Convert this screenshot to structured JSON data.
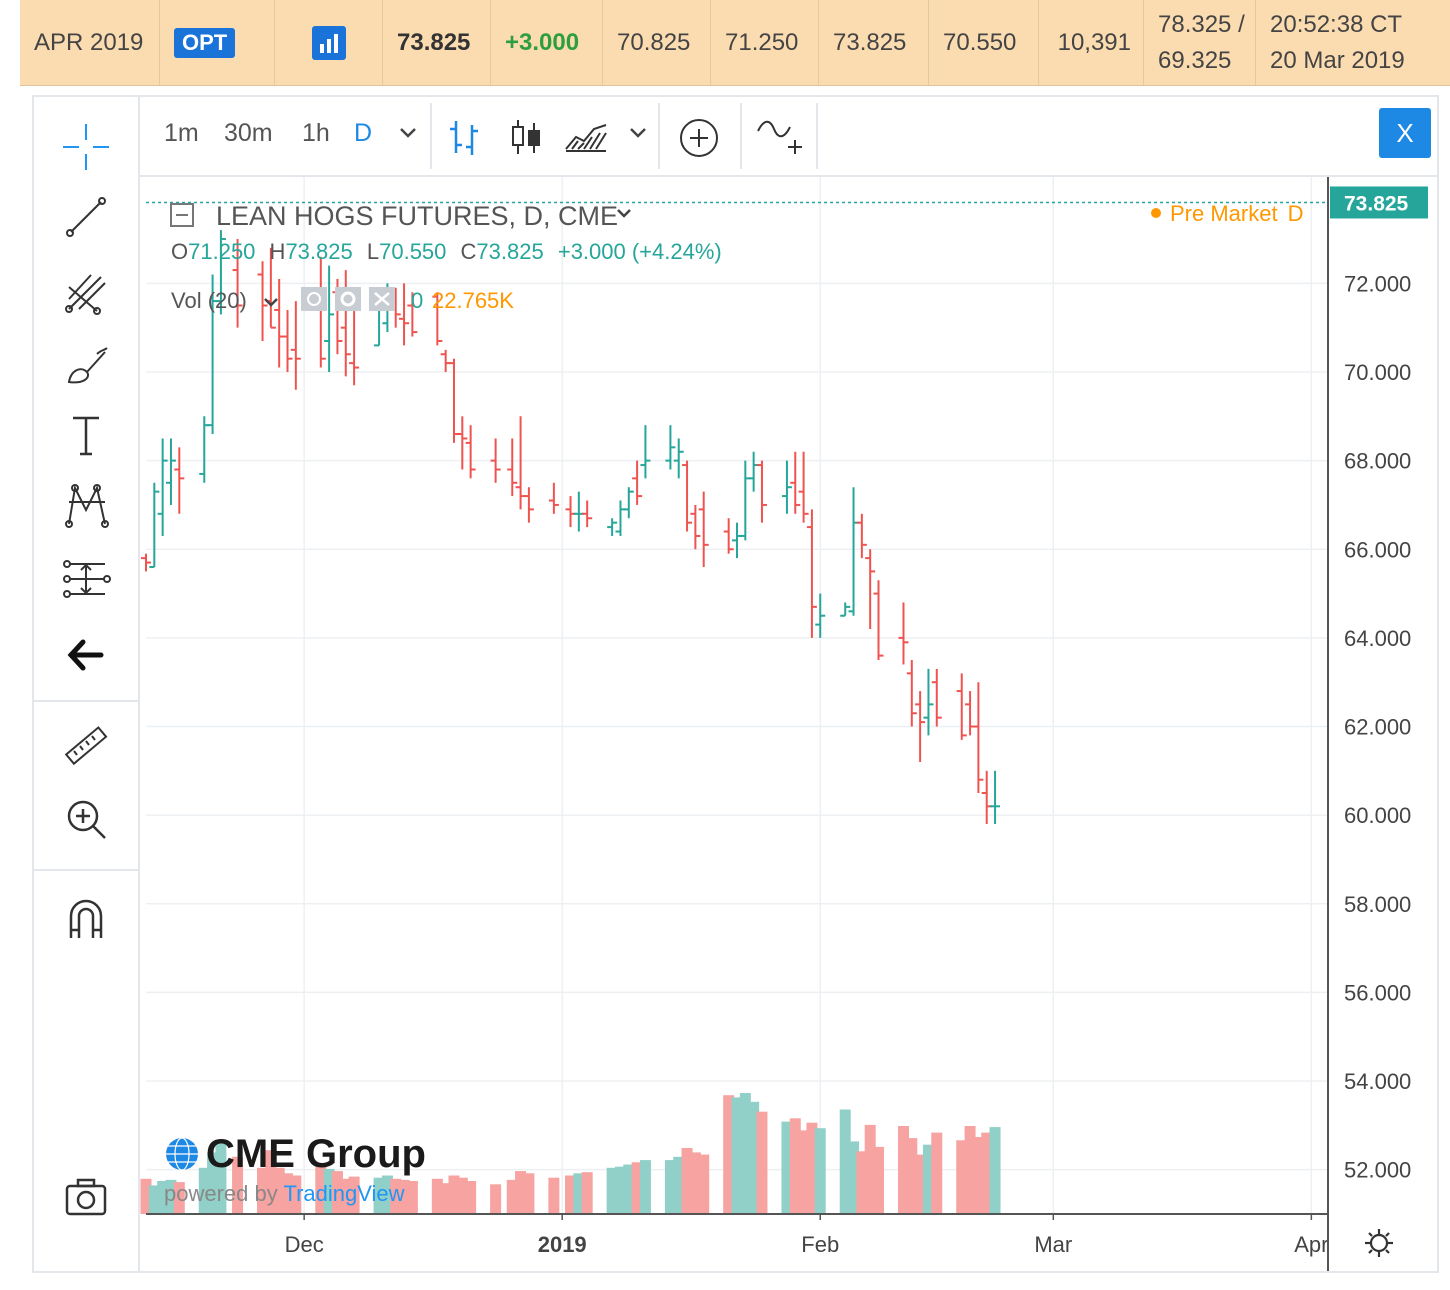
{
  "quote_bar": {
    "contract": "APR 2019",
    "opt_label": "OPT",
    "last": "73.825",
    "change": "+3.000",
    "prior_settle": "70.825",
    "open": "71.250",
    "high": "73.825",
    "low": "70.550",
    "volume": "10,391",
    "limit_high": "78.325 /",
    "limit_low": "69.325",
    "time": "20:52:38 CT",
    "date": "20 Mar 2019"
  },
  "toolbar": {
    "intervals": [
      "1m",
      "30m",
      "1h",
      "D"
    ],
    "close_label": "X"
  },
  "chart_data": {
    "type": "ohlc",
    "title": "LEAN HOGS FUTURES, D, CME",
    "session_label": "Pre Market",
    "session_interval": "D",
    "ohlc_readout": {
      "o_label": "O",
      "o": "71.250",
      "h_label": "H",
      "h": "73.825",
      "l_label": "L",
      "l": "70.550",
      "c_label": "C",
      "c": "73.825",
      "change": "+3.000 (+4.24%)"
    },
    "volume_label": "Vol (20)",
    "volume_value_label": "0",
    "volume_ma": "22.765K",
    "last_price_label": "73.825",
    "last_price": 73.825,
    "ylim": [
      51,
      74.4
    ],
    "y_ticks": [
      52,
      54,
      56,
      58,
      60,
      62,
      64,
      66,
      68,
      70,
      72
    ],
    "y_tick_labels": [
      "52.000",
      "54.000",
      "56.000",
      "58.000",
      "60.000",
      "62.000",
      "64.000",
      "66.000",
      "68.000",
      "70.000",
      "72.000"
    ],
    "x_range": [
      "2018-11-12",
      "2019-04-03"
    ],
    "x_ticks": [
      {
        "date": "2018-12-01",
        "label": "Dec",
        "bold": false
      },
      {
        "date": "2019-01-01",
        "label": "2019",
        "bold": true
      },
      {
        "date": "2019-02-01",
        "label": "Feb",
        "bold": false
      },
      {
        "date": "2019-03-01",
        "label": "Mar",
        "bold": false
      },
      {
        "date": "2019-04-01",
        "label": "Apr",
        "bold": false
      }
    ],
    "volume_max": 20000,
    "bars": [
      {
        "date": "2018-11-12",
        "o": 65.8,
        "h": 65.9,
        "l": 65.5,
        "c": 65.7,
        "v": 3200
      },
      {
        "date": "2018-11-13",
        "o": 65.6,
        "h": 67.5,
        "l": 65.6,
        "c": 67.3,
        "v": 2600
      },
      {
        "date": "2018-11-14",
        "o": 66.8,
        "h": 68.5,
        "l": 66.3,
        "c": 68.0,
        "v": 3000
      },
      {
        "date": "2018-11-15",
        "o": 67.5,
        "h": 68.5,
        "l": 67.0,
        "c": 68.0,
        "v": 3100
      },
      {
        "date": "2018-11-16",
        "o": 67.8,
        "h": 68.3,
        "l": 66.8,
        "c": 67.6,
        "v": 2900
      },
      {
        "date": "2018-11-19",
        "o": 67.7,
        "h": 69.0,
        "l": 67.5,
        "c": 68.8,
        "v": 4200
      },
      {
        "date": "2018-11-20",
        "o": 68.8,
        "h": 72.2,
        "l": 68.6,
        "c": 71.6,
        "v": 5600
      },
      {
        "date": "2018-11-21",
        "o": 71.6,
        "h": 73.2,
        "l": 71.3,
        "c": 73.0,
        "v": 6400
      },
      {
        "date": "2018-11-23",
        "o": 72.3,
        "h": 73.0,
        "l": 71.0,
        "c": 71.5,
        "v": 5200
      },
      {
        "date": "2018-11-26",
        "o": 72.2,
        "h": 72.5,
        "l": 70.7,
        "c": 71.5,
        "v": 4200
      },
      {
        "date": "2018-11-27",
        "o": 71.6,
        "h": 72.8,
        "l": 71.0,
        "c": 71.0,
        "v": 5800
      },
      {
        "date": "2018-11-28",
        "o": 71.4,
        "h": 72.1,
        "l": 70.1,
        "c": 70.8,
        "v": 4200
      },
      {
        "date": "2018-11-29",
        "o": 70.8,
        "h": 71.4,
        "l": 70.0,
        "c": 70.3,
        "v": 3700
      },
      {
        "date": "2018-11-30",
        "o": 70.5,
        "h": 71.6,
        "l": 69.6,
        "c": 70.3,
        "v": 3500
      },
      {
        "date": "2018-12-03",
        "o": 71.8,
        "h": 72.6,
        "l": 70.1,
        "c": 70.3,
        "v": 4500
      },
      {
        "date": "2018-12-04",
        "o": 70.7,
        "h": 72.4,
        "l": 70.0,
        "c": 71.3,
        "v": 4100
      },
      {
        "date": "2018-12-05",
        "o": 71.8,
        "h": 72.1,
        "l": 70.4,
        "c": 70.7,
        "v": 3900
      },
      {
        "date": "2018-12-06",
        "o": 71.0,
        "h": 72.3,
        "l": 69.9,
        "c": 70.4,
        "v": 3200
      },
      {
        "date": "2018-12-07",
        "o": 70.2,
        "h": 71.7,
        "l": 69.7,
        "c": 70.1,
        "v": 3400
      },
      {
        "date": "2018-12-10",
        "o": 70.6,
        "h": 71.9,
        "l": 70.6,
        "c": 71.6,
        "v": 3300
      },
      {
        "date": "2018-12-11",
        "o": 71.1,
        "h": 72.0,
        "l": 70.9,
        "c": 71.5,
        "v": 3500
      },
      {
        "date": "2018-12-12",
        "o": 71.6,
        "h": 71.9,
        "l": 71.0,
        "c": 71.3,
        "v": 3200
      },
      {
        "date": "2018-12-13",
        "o": 71.2,
        "h": 72.0,
        "l": 70.6,
        "c": 71.1,
        "v": 3100
      },
      {
        "date": "2018-12-14",
        "o": 71.5,
        "h": 71.8,
        "l": 70.8,
        "c": 70.9,
        "v": 3000
      },
      {
        "date": "2018-12-17",
        "o": 71.7,
        "h": 71.8,
        "l": 70.6,
        "c": 70.7,
        "v": 3200
      },
      {
        "date": "2018-12-18",
        "o": 70.4,
        "h": 70.5,
        "l": 70.0,
        "c": 70.2,
        "v": 2800
      },
      {
        "date": "2018-12-19",
        "o": 70.2,
        "h": 70.3,
        "l": 68.4,
        "c": 68.6,
        "v": 3500
      },
      {
        "date": "2018-12-20",
        "o": 68.6,
        "h": 69.0,
        "l": 67.8,
        "c": 68.5,
        "v": 3300
      },
      {
        "date": "2018-12-21",
        "o": 68.4,
        "h": 68.8,
        "l": 67.6,
        "c": 67.8,
        "v": 3000
      },
      {
        "date": "2018-12-24",
        "o": 68.0,
        "h": 68.5,
        "l": 67.5,
        "c": 67.8,
        "v": 2700
      },
      {
        "date": "2018-12-26",
        "o": 67.8,
        "h": 68.5,
        "l": 67.2,
        "c": 67.5,
        "v": 3100
      },
      {
        "date": "2018-12-27",
        "o": 67.4,
        "h": 69.0,
        "l": 66.9,
        "c": 67.2,
        "v": 3900
      },
      {
        "date": "2018-12-28",
        "o": 67.2,
        "h": 67.4,
        "l": 66.6,
        "c": 66.9,
        "v": 3700
      },
      {
        "date": "2018-12-31",
        "o": 67.1,
        "h": 67.5,
        "l": 66.8,
        "c": 67.0,
        "v": 3300
      },
      {
        "date": "2019-01-02",
        "o": 66.9,
        "h": 67.2,
        "l": 66.5,
        "c": 66.8,
        "v": 3500
      },
      {
        "date": "2019-01-03",
        "o": 66.8,
        "h": 67.3,
        "l": 66.4,
        "c": 66.8,
        "v": 3700
      },
      {
        "date": "2019-01-04",
        "o": 66.8,
        "h": 67.1,
        "l": 66.5,
        "c": 66.7,
        "v": 3800
      },
      {
        "date": "2019-01-07",
        "o": 66.5,
        "h": 66.7,
        "l": 66.3,
        "c": 66.6,
        "v": 4200
      },
      {
        "date": "2019-01-08",
        "o": 66.4,
        "h": 67.1,
        "l": 66.3,
        "c": 66.9,
        "v": 4300
      },
      {
        "date": "2019-01-09",
        "o": 66.9,
        "h": 67.4,
        "l": 66.7,
        "c": 67.3,
        "v": 4500
      },
      {
        "date": "2019-01-10",
        "o": 67.6,
        "h": 68.0,
        "l": 67.0,
        "c": 67.2,
        "v": 4700
      },
      {
        "date": "2019-01-11",
        "o": 67.9,
        "h": 68.8,
        "l": 67.6,
        "c": 68.0,
        "v": 4900
      },
      {
        "date": "2019-01-14",
        "o": 68.0,
        "h": 68.8,
        "l": 67.8,
        "c": 68.3,
        "v": 4900
      },
      {
        "date": "2019-01-15",
        "o": 68.0,
        "h": 68.5,
        "l": 67.6,
        "c": 68.2,
        "v": 5200
      },
      {
        "date": "2019-01-16",
        "o": 67.9,
        "h": 68.0,
        "l": 66.4,
        "c": 66.6,
        "v": 6000
      },
      {
        "date": "2019-01-17",
        "o": 66.8,
        "h": 67.0,
        "l": 66.0,
        "c": 66.3,
        "v": 5600
      },
      {
        "date": "2019-01-18",
        "o": 66.9,
        "h": 67.3,
        "l": 65.6,
        "c": 66.1,
        "v": 5400
      },
      {
        "date": "2019-01-21",
        "o": 66.4,
        "h": 66.7,
        "l": 65.9,
        "c": 66.0,
        "v": 10800
      },
      {
        "date": "2019-01-22",
        "o": 66.2,
        "h": 66.6,
        "l": 65.8,
        "c": 66.3,
        "v": 10600
      },
      {
        "date": "2019-01-23",
        "o": 66.3,
        "h": 68.0,
        "l": 66.2,
        "c": 67.6,
        "v": 11000
      },
      {
        "date": "2019-01-24",
        "o": 67.6,
        "h": 68.2,
        "l": 67.3,
        "c": 67.9,
        "v": 10200
      },
      {
        "date": "2019-01-25",
        "o": 67.9,
        "h": 68.0,
        "l": 66.6,
        "c": 67.0,
        "v": 9300
      },
      {
        "date": "2019-01-28",
        "o": 67.2,
        "h": 68.0,
        "l": 66.8,
        "c": 67.4,
        "v": 8400
      },
      {
        "date": "2019-01-29",
        "o": 67.5,
        "h": 68.2,
        "l": 66.8,
        "c": 67.0,
        "v": 8700
      },
      {
        "date": "2019-01-30",
        "o": 67.3,
        "h": 68.2,
        "l": 66.6,
        "c": 66.8,
        "v": 7600
      },
      {
        "date": "2019-01-31",
        "o": 66.5,
        "h": 66.9,
        "l": 64.0,
        "c": 64.7,
        "v": 8300
      },
      {
        "date": "2019-02-01",
        "o": 64.3,
        "h": 65.0,
        "l": 64.0,
        "c": 64.5,
        "v": 7800
      },
      {
        "date": "2019-02-04",
        "o": 64.5,
        "h": 64.8,
        "l": 64.5,
        "c": 64.7,
        "v": 9500
      },
      {
        "date": "2019-02-05",
        "o": 64.6,
        "h": 67.4,
        "l": 64.5,
        "c": 66.6,
        "v": 6600
      },
      {
        "date": "2019-02-06",
        "o": 66.6,
        "h": 66.8,
        "l": 65.8,
        "c": 66.1,
        "v": 5700
      },
      {
        "date": "2019-02-07",
        "o": 65.8,
        "h": 66.0,
        "l": 64.2,
        "c": 65.5,
        "v": 8100
      },
      {
        "date": "2019-02-08",
        "o": 65.0,
        "h": 65.3,
        "l": 63.5,
        "c": 63.6,
        "v": 6100
      },
      {
        "date": "2019-02-11",
        "o": 64.0,
        "h": 64.8,
        "l": 63.4,
        "c": 63.9,
        "v": 8000
      },
      {
        "date": "2019-02-12",
        "o": 63.2,
        "h": 63.5,
        "l": 62.0,
        "c": 62.3,
        "v": 6900
      },
      {
        "date": "2019-02-13",
        "o": 62.5,
        "h": 62.8,
        "l": 61.2,
        "c": 62.1,
        "v": 5400
      },
      {
        "date": "2019-02-14",
        "o": 62.2,
        "h": 63.3,
        "l": 61.8,
        "c": 62.5,
        "v": 6300
      },
      {
        "date": "2019-02-15",
        "o": 63.0,
        "h": 63.3,
        "l": 62.0,
        "c": 62.2,
        "v": 7400
      },
      {
        "date": "2019-02-18",
        "o": 62.8,
        "h": 63.2,
        "l": 61.7,
        "c": 61.8,
        "v": 6700
      },
      {
        "date": "2019-02-19",
        "o": 62.5,
        "h": 62.8,
        "l": 61.8,
        "c": 62.0,
        "v": 8000
      },
      {
        "date": "2019-02-20",
        "o": 62.0,
        "h": 63.0,
        "l": 60.5,
        "c": 60.8,
        "v": 7000
      },
      {
        "date": "2019-02-21",
        "o": 60.5,
        "h": 61.0,
        "l": 59.8,
        "c": 60.2,
        "v": 7400
      },
      {
        "date": "2019-02-22",
        "o": 60.2,
        "h": 61.0,
        "l": 59.8,
        "c": 60.2,
        "v": 7900
      }
    ]
  }
}
